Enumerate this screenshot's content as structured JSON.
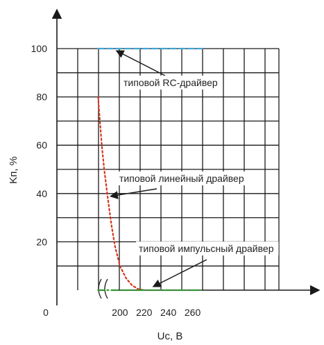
{
  "chart_data": {
    "type": "line",
    "xlabel": "Uc, В",
    "ylabel": "Kп, %",
    "x_axis_note": "axis broken between 0 and ~180",
    "x_ticks": [
      200,
      220,
      240,
      260
    ],
    "x_origin_label": "0",
    "y_ticks": [
      20,
      40,
      60,
      80,
      100
    ],
    "xlim": [
      172,
      272
    ],
    "ylim": [
      0,
      100
    ],
    "grid": true,
    "series": [
      {
        "name": "типовой RC-драйвер",
        "color": "#3aa6d8",
        "style": "dashed",
        "x": [
          182,
          268
        ],
        "y": [
          100,
          100
        ]
      },
      {
        "name": "типовой линейный драйвер",
        "color": "#d9341c",
        "style": "dotted",
        "x": [
          182,
          183,
          185,
          187,
          190,
          193,
          196,
          200,
          205,
          210,
          215,
          220
        ],
        "y": [
          80,
          73,
          60,
          50,
          38,
          27,
          18,
          10,
          5,
          2,
          0.5,
          0
        ]
      },
      {
        "name": "типовой импульсный драйвер",
        "color": "#2e9a2e",
        "style": "dashdot",
        "x": [
          182,
          268
        ],
        "y": [
          0,
          0
        ]
      }
    ],
    "annotations": [
      {
        "text": "типовой RC-драйвер",
        "points_to": [
          197,
          100
        ]
      },
      {
        "text": "типовой линейный драйвер",
        "points_to": [
          191,
          40
        ]
      },
      {
        "text": "типовой импульсный драйвер",
        "points_to": [
          224,
          0
        ]
      }
    ]
  }
}
